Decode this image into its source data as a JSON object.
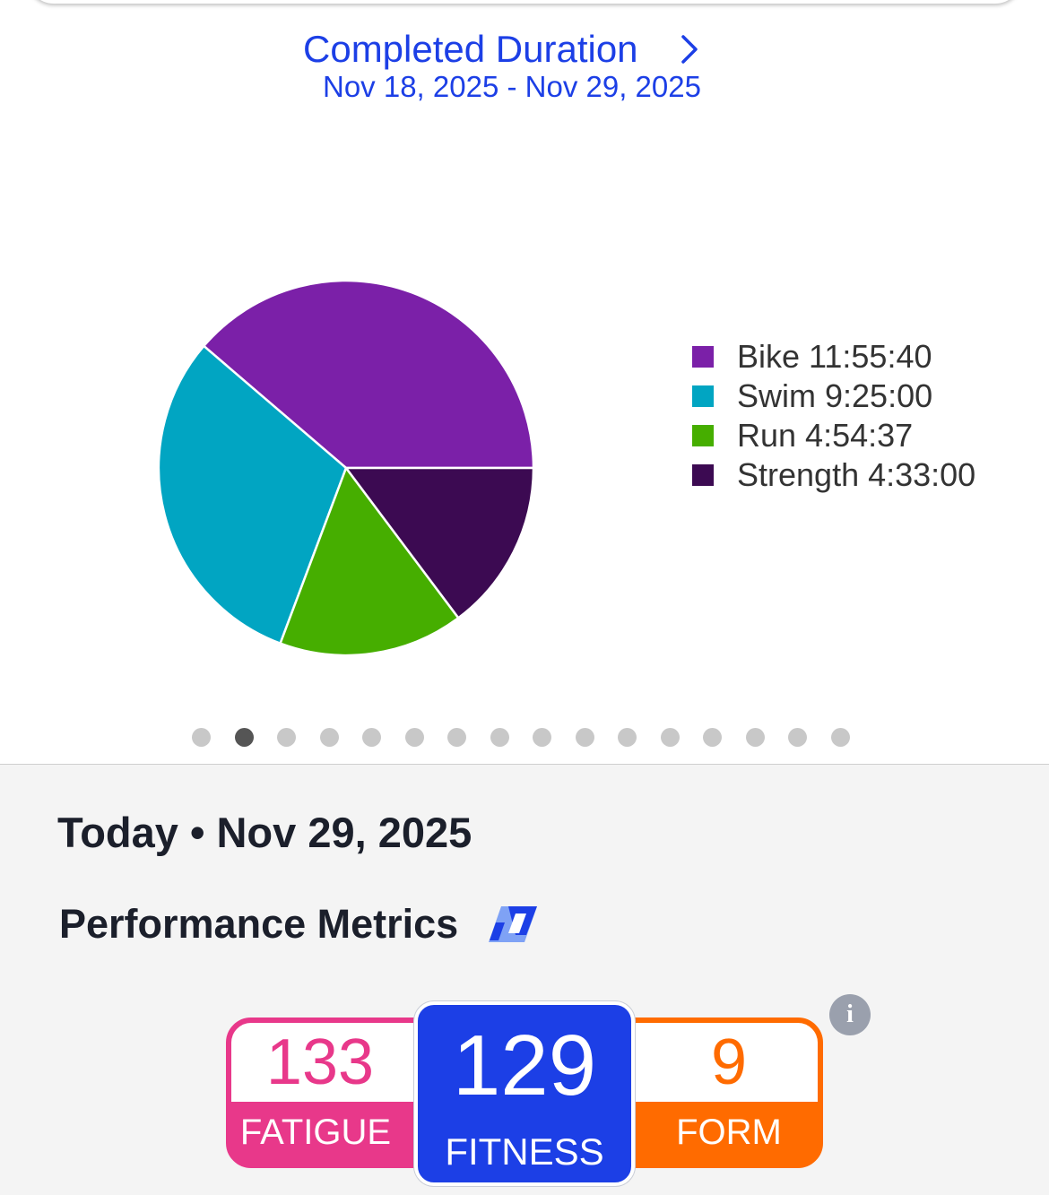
{
  "header": {
    "title": "Completed Duration",
    "date_range": "Nov 18, 2025 - Nov 29, 2025"
  },
  "chart_data": {
    "type": "pie",
    "categories": [
      "Bike",
      "Swim",
      "Run",
      "Strength"
    ],
    "labels": [
      "Bike 11:55:40",
      "Swim 9:25:00",
      "Run 4:54:37",
      "Strength 4:33:00"
    ],
    "values_seconds": [
      42940,
      33900,
      17677,
      16380
    ],
    "colors": [
      "#7b20a8",
      "#01a5c2",
      "#46ae00",
      "#3c0a52"
    ],
    "legend_position": "right"
  },
  "pager": {
    "count": 16,
    "active_index": 1
  },
  "today": {
    "label": "Today • Nov 29, 2025"
  },
  "performance": {
    "title": "Performance Metrics",
    "info_icon_glyph": "i",
    "fatigue": {
      "value": "133",
      "label": "FATIGUE",
      "color": "#e8388a"
    },
    "fitness": {
      "value": "129",
      "label": "FITNESS",
      "color": "#1c3fe6"
    },
    "form": {
      "value": "9",
      "label": "FORM",
      "color": "#ff6b00"
    }
  }
}
